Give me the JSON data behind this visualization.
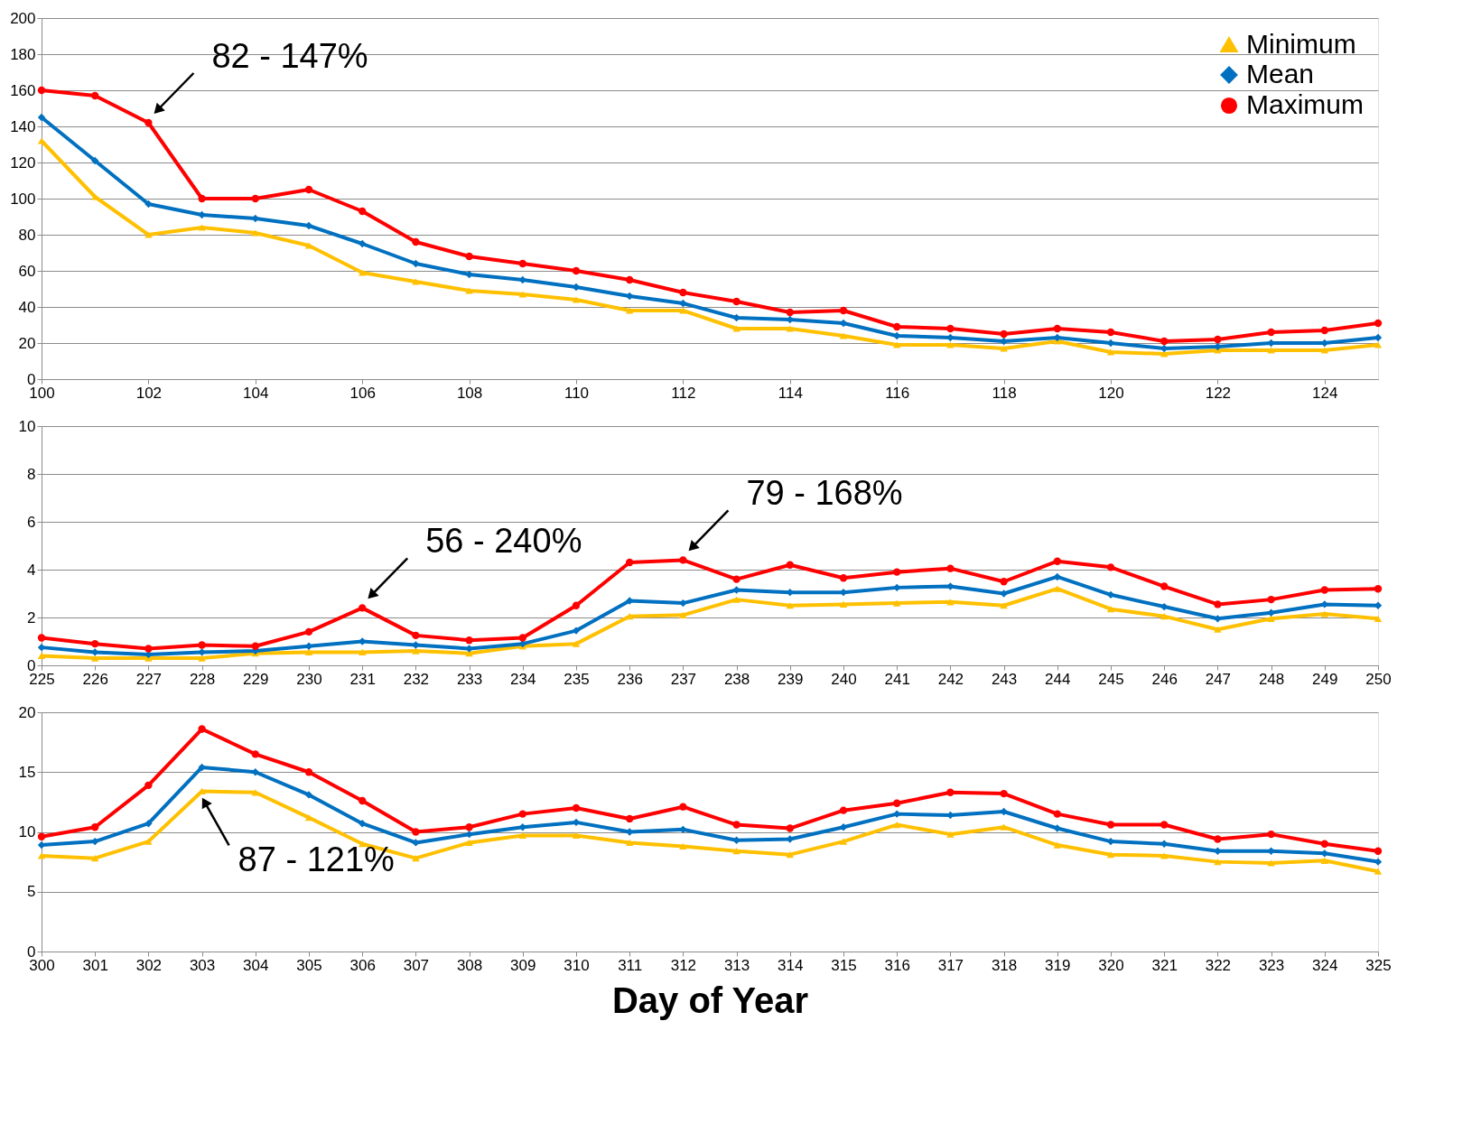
{
  "chart_data": [
    {
      "type": "line",
      "x": [
        100,
        101,
        102,
        103,
        104,
        105,
        106,
        107,
        108,
        109,
        110,
        111,
        112,
        113,
        114,
        115,
        116,
        117,
        118,
        119,
        120,
        121,
        122,
        123,
        124,
        125
      ],
      "xlim": [
        100,
        125
      ],
      "xticks": [
        100,
        102,
        104,
        106,
        108,
        110,
        112,
        114,
        116,
        118,
        120,
        122,
        124
      ],
      "ylim": [
        0,
        200
      ],
      "yticks": [
        0,
        20,
        40,
        60,
        80,
        100,
        120,
        140,
        160,
        180,
        200
      ],
      "grid": "y",
      "legend": "top right",
      "line_style": "solid",
      "series": [
        {
          "name": "Minimum",
          "color": "#ffc000",
          "marker": "triangle",
          "values": [
            132,
            101,
            80,
            84,
            81,
            74,
            59,
            54,
            49,
            47,
            44,
            38,
            38,
            28,
            28,
            24,
            19,
            19,
            17,
            21,
            15,
            14,
            16,
            16,
            16,
            19
          ]
        },
        {
          "name": "Mean",
          "color": "#0070c0",
          "marker": "diamond",
          "values": [
            145,
            121,
            97,
            91,
            89,
            85,
            75,
            64,
            58,
            55,
            51,
            46,
            42,
            34,
            33,
            31,
            24,
            23,
            21,
            23,
            20,
            17,
            18,
            20,
            20,
            23
          ]
        },
        {
          "name": "Maximum",
          "color": "#ff0000",
          "marker": "circle",
          "values": [
            160,
            157,
            142,
            100,
            100,
            105,
            93,
            76,
            68,
            64,
            60,
            55,
            48,
            43,
            37,
            38,
            29,
            28,
            25,
            28,
            26,
            21,
            22,
            26,
            27,
            31
          ]
        }
      ],
      "annotations": [
        {
          "text": "82 - 147%",
          "x": 102,
          "y": 142
        }
      ]
    },
    {
      "type": "line",
      "x": [
        225,
        226,
        227,
        228,
        229,
        230,
        231,
        232,
        233,
        234,
        235,
        236,
        237,
        238,
        239,
        240,
        241,
        242,
        243,
        244,
        245,
        246,
        247,
        248,
        249,
        250
      ],
      "xlim": [
        225,
        250
      ],
      "xticks": [
        225,
        226,
        227,
        228,
        229,
        230,
        231,
        232,
        233,
        234,
        235,
        236,
        237,
        238,
        239,
        240,
        241,
        242,
        243,
        244,
        245,
        246,
        247,
        248,
        249,
        250
      ],
      "ylim": [
        0,
        10
      ],
      "yticks": [
        0,
        2,
        4,
        6,
        8,
        10
      ],
      "grid": "y",
      "line_style": "solid",
      "series": [
        {
          "color": "#ffc000",
          "marker": "triangle",
          "values": [
            0.4,
            0.3,
            0.3,
            0.3,
            0.5,
            0.55,
            0.55,
            0.6,
            0.5,
            0.8,
            0.9,
            2.05,
            2.1,
            2.75,
            2.5,
            2.55,
            2.6,
            2.65,
            2.5,
            3.2,
            2.35,
            2.05,
            1.5,
            1.95,
            2.15,
            1.95
          ]
        },
        {
          "color": "#0070c0",
          "marker": "diamond",
          "values": [
            0.75,
            0.55,
            0.45,
            0.55,
            0.6,
            0.8,
            1.0,
            0.85,
            0.7,
            0.9,
            1.45,
            2.7,
            2.6,
            3.15,
            3.05,
            3.05,
            3.25,
            3.3,
            3.0,
            3.7,
            2.95,
            2.45,
            1.95,
            2.2,
            2.55,
            2.5
          ]
        },
        {
          "color": "#ff0000",
          "marker": "circle",
          "values": [
            1.15,
            0.9,
            0.7,
            0.85,
            0.8,
            1.4,
            2.4,
            1.25,
            1.05,
            1.15,
            2.5,
            4.3,
            4.4,
            3.6,
            4.2,
            3.65,
            3.9,
            4.05,
            3.5,
            4.35,
            4.1,
            3.3,
            2.55,
            2.75,
            3.15,
            3.2
          ]
        }
      ],
      "annotations": [
        {
          "text": "56 - 240%",
          "x": 231,
          "y": 2.4
        },
        {
          "text": "79 - 168%",
          "x": 237,
          "y": 4.4
        }
      ]
    },
    {
      "type": "line",
      "x": [
        300,
        301,
        302,
        303,
        304,
        305,
        306,
        307,
        308,
        309,
        310,
        311,
        312,
        313,
        314,
        315,
        316,
        317,
        318,
        319,
        320,
        321,
        322,
        323,
        324,
        325
      ],
      "xlim": [
        300,
        325
      ],
      "xticks": [
        300,
        301,
        302,
        303,
        304,
        305,
        306,
        307,
        308,
        309,
        310,
        311,
        312,
        313,
        314,
        315,
        316,
        317,
        318,
        319,
        320,
        321,
        322,
        323,
        324,
        325
      ],
      "ylim": [
        0,
        20
      ],
      "yticks": [
        0,
        5,
        10,
        15,
        20
      ],
      "grid": "y",
      "line_style": "solid",
      "xlabel": "Day of Year",
      "series": [
        {
          "color": "#ffc000",
          "marker": "triangle",
          "values": [
            8.0,
            7.8,
            9.2,
            13.4,
            13.3,
            11.2,
            9.0,
            7.8,
            9.1,
            9.7,
            9.7,
            9.1,
            8.8,
            8.4,
            8.1,
            9.2,
            10.6,
            9.8,
            10.4,
            8.9,
            8.1,
            8.0,
            7.5,
            7.4,
            7.6,
            6.7
          ]
        },
        {
          "color": "#0070c0",
          "marker": "diamond",
          "values": [
            8.9,
            9.2,
            10.7,
            15.4,
            15.0,
            13.1,
            10.7,
            9.1,
            9.8,
            10.4,
            10.8,
            10.0,
            10.2,
            9.3,
            9.4,
            10.4,
            11.5,
            11.4,
            11.7,
            10.3,
            9.2,
            9.0,
            8.4,
            8.4,
            8.2,
            7.5
          ]
        },
        {
          "color": "#ff0000",
          "marker": "circle",
          "values": [
            9.6,
            10.4,
            13.9,
            18.6,
            16.5,
            15.0,
            12.6,
            10.0,
            10.4,
            11.5,
            12.0,
            11.1,
            12.1,
            10.6,
            10.3,
            11.8,
            12.4,
            13.3,
            13.2,
            11.5,
            10.6,
            10.6,
            9.4,
            9.8,
            9.0,
            8.4
          ]
        }
      ],
      "annotations": [
        {
          "text": "87 - 121%",
          "x": 303,
          "y": 13.4
        }
      ]
    }
  ]
}
